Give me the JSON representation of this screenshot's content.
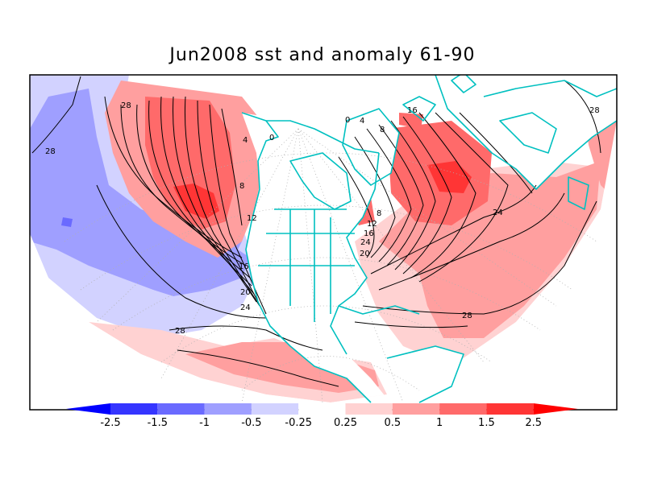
{
  "title": "Jun2008 sst and anomaly 61-90",
  "colorbar": {
    "labels": [
      "-2.5",
      "-1.5",
      "-1",
      "-0.5",
      "-0.25",
      "0.25",
      "0.5",
      "1",
      "1.5",
      "2.5"
    ],
    "colors": [
      "#0000ff",
      "#3535ff",
      "#6a6aff",
      "#9f9fff",
      "#d2d2ff",
      "#ffffff",
      "#ffd2d2",
      "#ff9f9f",
      "#ff6a6a",
      "#ff3535",
      "#ff0000"
    ]
  },
  "contour_labels": [
    "28",
    "28",
    "24",
    "20",
    "16",
    "12",
    "8",
    "4",
    "0",
    "16",
    "8",
    "4",
    "0",
    "24",
    "28",
    "28",
    "28",
    "24",
    "20",
    "16",
    "12",
    "8"
  ],
  "colors": {
    "coastline": "#00c0c0",
    "grid": "#b0b0b0",
    "frame": "#000000"
  }
}
